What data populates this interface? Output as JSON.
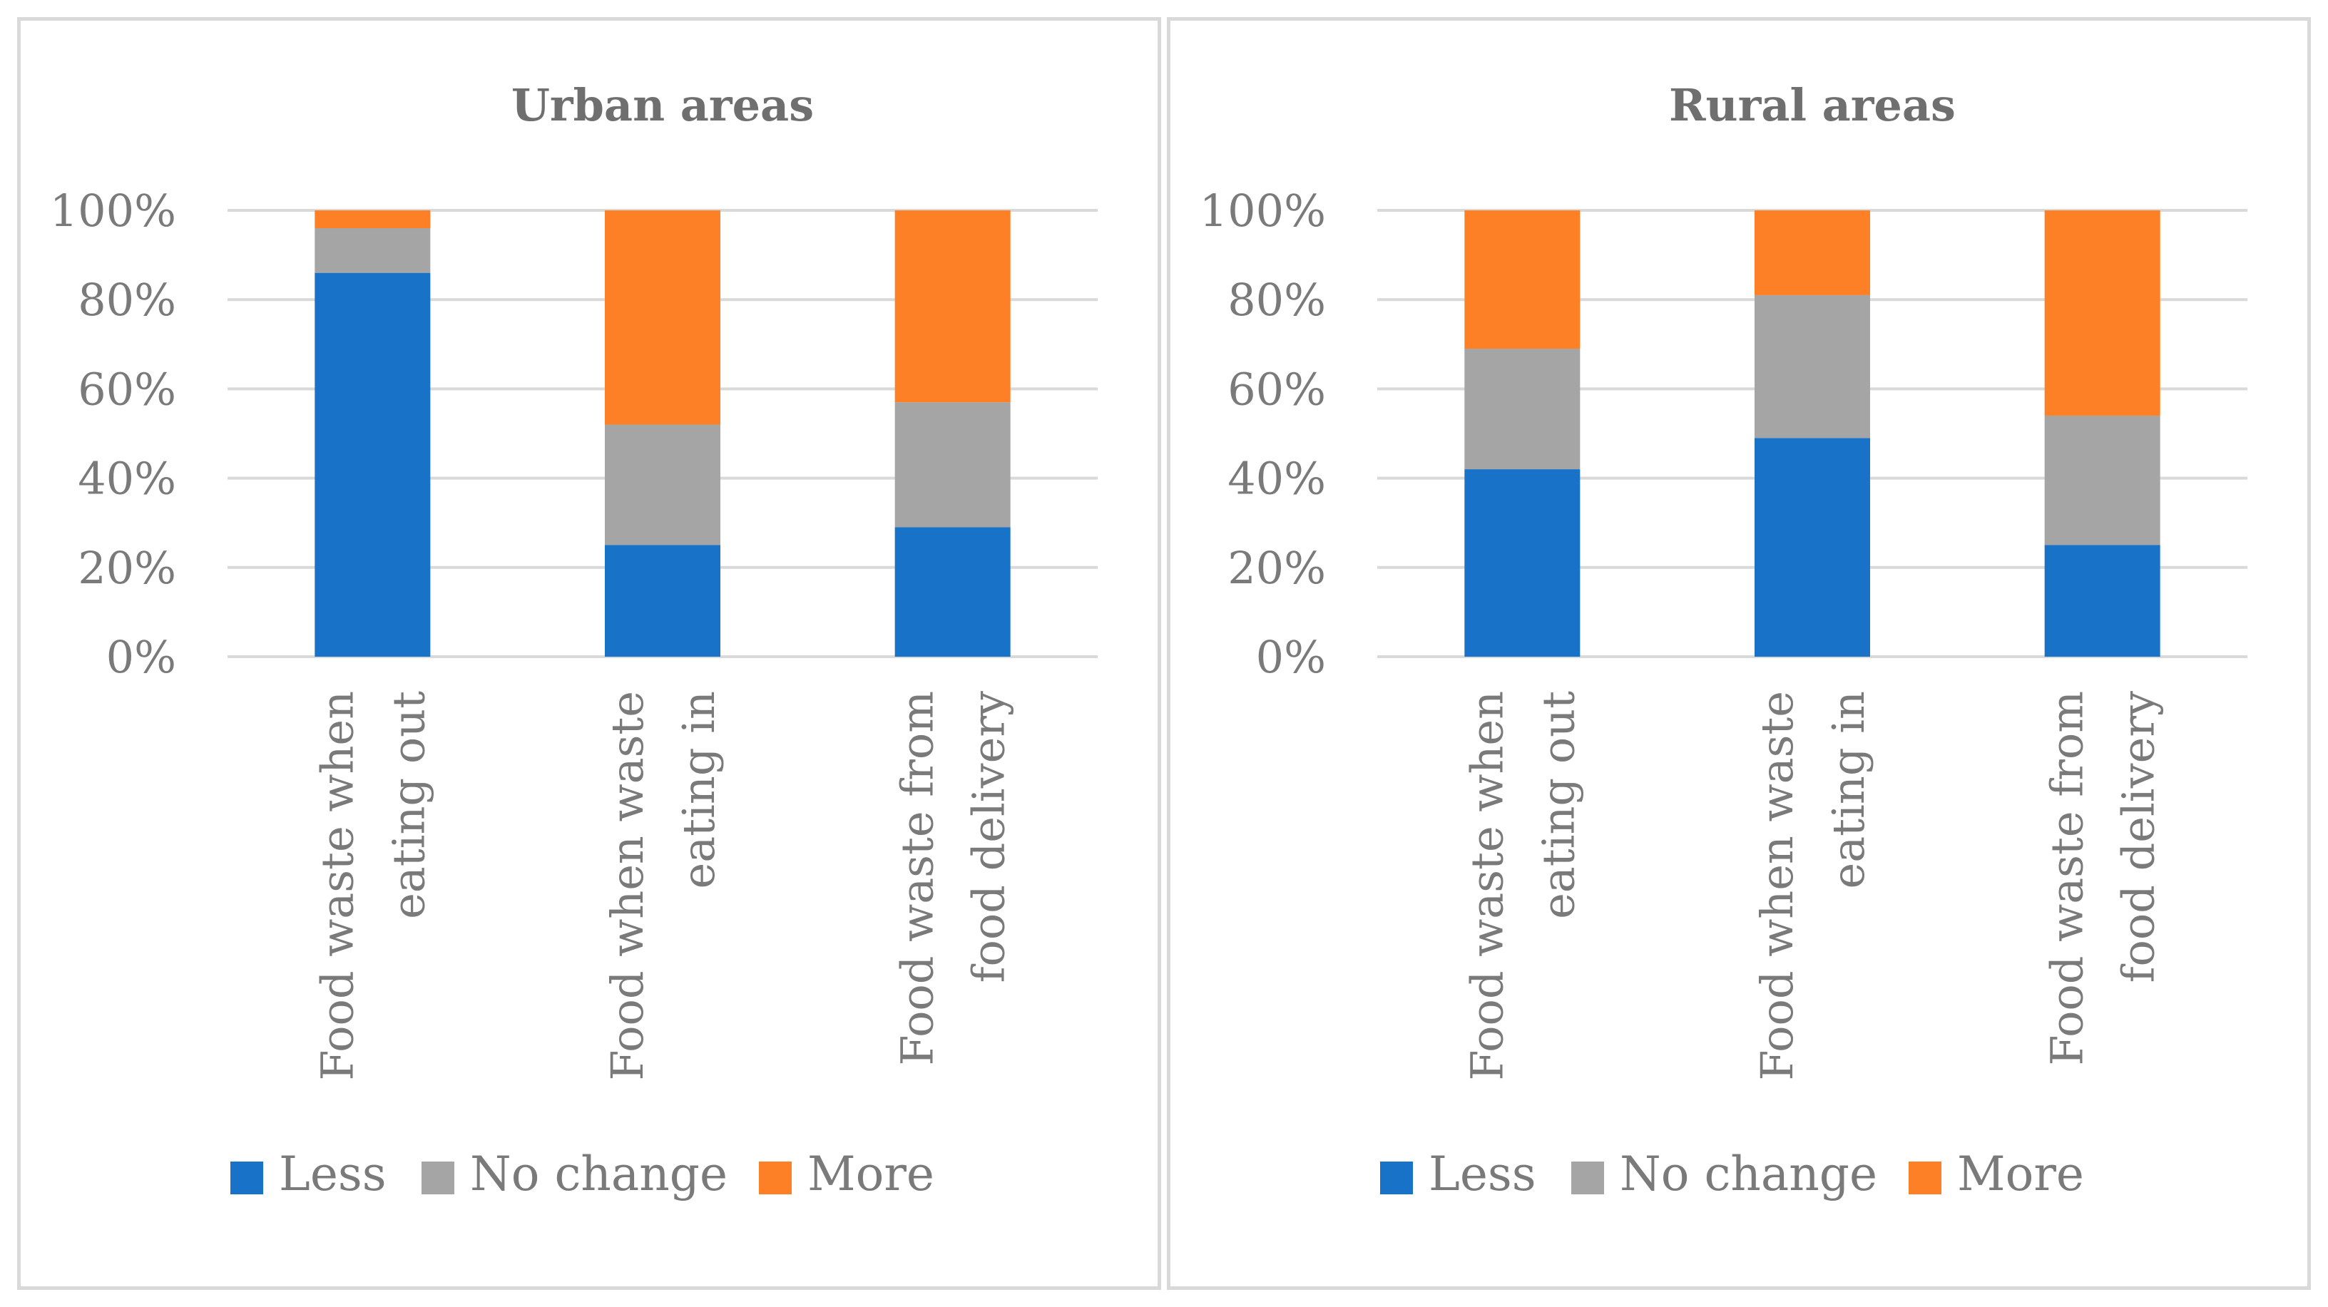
{
  "chart_data": [
    {
      "type": "bar",
      "stacked": true,
      "title": "Urban areas",
      "categories": [
        [
          "Food waste when",
          "eating out"
        ],
        [
          "Food when waste",
          "eating in"
        ],
        [
          "Food waste from",
          "food delivery"
        ]
      ],
      "series": [
        {
          "name": "Less",
          "color": "#1872c7",
          "values": [
            86,
            25,
            29
          ]
        },
        {
          "name": "No change",
          "color": "#a5a5a5",
          "values": [
            10,
            27,
            28
          ]
        },
        {
          "name": "More",
          "color": "#fe8026",
          "values": [
            4,
            48,
            43
          ]
        }
      ],
      "yticks": [
        "0%",
        "20%",
        "40%",
        "60%",
        "80%",
        "100%"
      ],
      "ylim": [
        0,
        100
      ],
      "grid": true,
      "legend": "bottom"
    },
    {
      "type": "bar",
      "stacked": true,
      "title": "Rural areas",
      "categories": [
        [
          "Food waste when",
          "eating out"
        ],
        [
          "Food when waste",
          "eating in"
        ],
        [
          "Food waste from",
          "food delivery"
        ]
      ],
      "series": [
        {
          "name": "Less",
          "color": "#1872c7",
          "values": [
            42,
            49,
            25
          ]
        },
        {
          "name": "No change",
          "color": "#a5a5a5",
          "values": [
            27,
            32,
            29
          ]
        },
        {
          "name": "More",
          "color": "#fe8026",
          "values": [
            31,
            19,
            46
          ]
        }
      ],
      "yticks": [
        "0%",
        "20%",
        "40%",
        "60%",
        "80%",
        "100%"
      ],
      "ylim": [
        0,
        100
      ],
      "grid": true,
      "legend": "bottom"
    }
  ]
}
